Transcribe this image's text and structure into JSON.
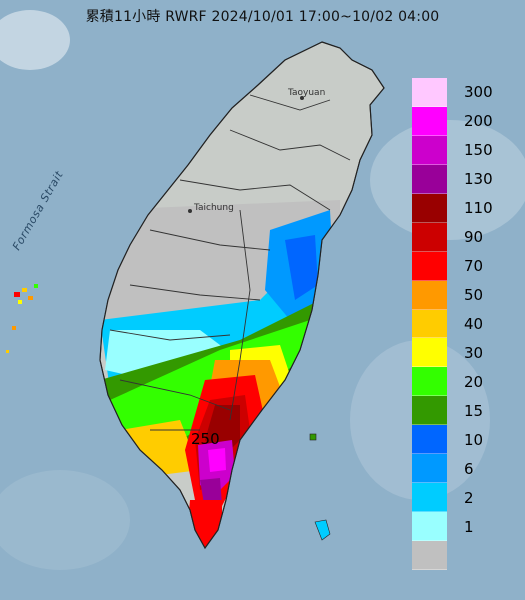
{
  "title": "累積11小時 RWRF 2024/10/01 17:00~10/02 04:00",
  "places": {
    "taoyuan": "Taoyuan",
    "taichung": "Taichung",
    "strait": "Formosa Strait"
  },
  "max_label": "250",
  "legend": {
    "items": [
      {
        "label": "300",
        "color": "#ffc8ff"
      },
      {
        "label": "200",
        "color": "#ff00ff"
      },
      {
        "label": "150",
        "color": "#cc00cc"
      },
      {
        "label": "130",
        "color": "#990099"
      },
      {
        "label": "110",
        "color": "#990000"
      },
      {
        "label": "90",
        "color": "#cc0000"
      },
      {
        "label": "70",
        "color": "#ff0000"
      },
      {
        "label": "50",
        "color": "#ff9900"
      },
      {
        "label": "40",
        "color": "#ffcc00"
      },
      {
        "label": "30",
        "color": "#ffff00"
      },
      {
        "label": "20",
        "color": "#33ff00"
      },
      {
        "label": "15",
        "color": "#339900"
      },
      {
        "label": "10",
        "color": "#0066ff"
      },
      {
        "label": "6",
        "color": "#0099ff"
      },
      {
        "label": "2",
        "color": "#00ccff"
      },
      {
        "label": "1",
        "color": "#99ffff"
      },
      {
        "label": "",
        "color": "#c0c0c0"
      }
    ]
  },
  "colors": {
    "sea": "#8fb1c9",
    "land": "#c8ccc8",
    "no_rain": "#c0c0c0"
  }
}
